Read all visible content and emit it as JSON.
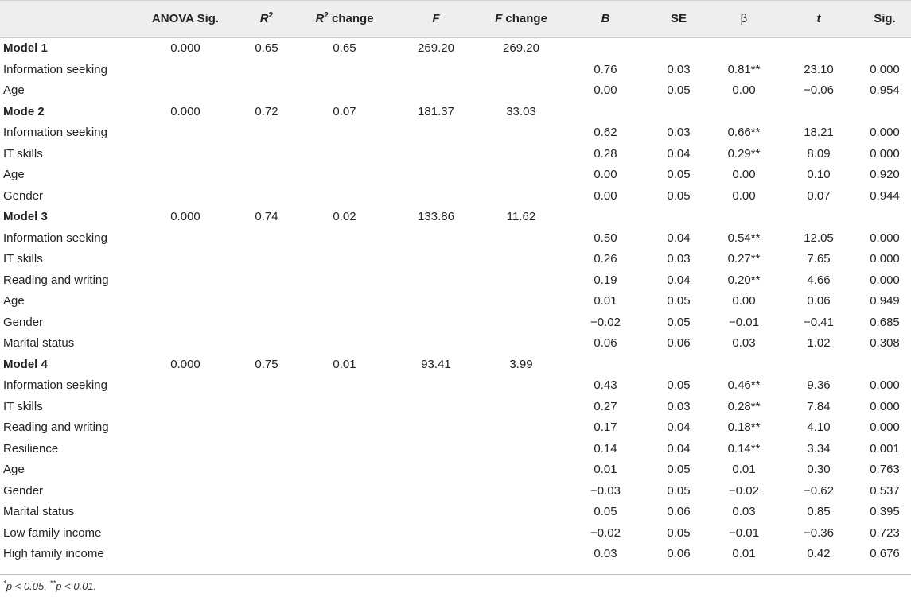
{
  "table": {
    "headers": {
      "anova_sig": "ANOVA Sig.",
      "r2": "R",
      "r2_sup": "2",
      "r2change": "R",
      "r2change_sup": "2",
      "r2change_suffix": " change",
      "f": "F",
      "fchange": "F",
      "fchange_suffix": " change",
      "b": "B",
      "se": "SE",
      "beta": "β",
      "t": "t",
      "sig": "Sig."
    },
    "rows": [
      {
        "label": "Model 1",
        "bold": true,
        "anova": "0.000",
        "r2": "0.65",
        "r2c": "0.65",
        "f": "269.20",
        "fc": "269.20",
        "b": "",
        "se": "",
        "beta": "",
        "t": "",
        "sig": ""
      },
      {
        "label": "Information seeking",
        "bold": false,
        "anova": "",
        "r2": "",
        "r2c": "",
        "f": "",
        "fc": "",
        "b": "0.76",
        "se": "0.03",
        "beta": "0.81**",
        "t": "23.10",
        "sig": "0.000"
      },
      {
        "label": "Age",
        "bold": false,
        "anova": "",
        "r2": "",
        "r2c": "",
        "f": "",
        "fc": "",
        "b": "0.00",
        "se": "0.05",
        "beta": "0.00",
        "t": "−0.06",
        "sig": "0.954"
      },
      {
        "label": "Mode 2",
        "bold": true,
        "anova": "0.000",
        "r2": "0.72",
        "r2c": "0.07",
        "f": "181.37",
        "fc": "33.03",
        "b": "",
        "se": "",
        "beta": "",
        "t": "",
        "sig": ""
      },
      {
        "label": "Information seeking",
        "bold": false,
        "anova": "",
        "r2": "",
        "r2c": "",
        "f": "",
        "fc": "",
        "b": "0.62",
        "se": "0.03",
        "beta": "0.66**",
        "t": "18.21",
        "sig": "0.000"
      },
      {
        "label": "IT skills",
        "bold": false,
        "anova": "",
        "r2": "",
        "r2c": "",
        "f": "",
        "fc": "",
        "b": "0.28",
        "se": "0.04",
        "beta": "0.29**",
        "t": "8.09",
        "sig": "0.000"
      },
      {
        "label": "Age",
        "bold": false,
        "anova": "",
        "r2": "",
        "r2c": "",
        "f": "",
        "fc": "",
        "b": "0.00",
        "se": "0.05",
        "beta": "0.00",
        "t": "0.10",
        "sig": "0.920"
      },
      {
        "label": "Gender",
        "bold": false,
        "anova": "",
        "r2": "",
        "r2c": "",
        "f": "",
        "fc": "",
        "b": "0.00",
        "se": "0.05",
        "beta": "0.00",
        "t": "0.07",
        "sig": "0.944"
      },
      {
        "label": "Model 3",
        "bold": true,
        "anova": "0.000",
        "r2": "0.74",
        "r2c": "0.02",
        "f": "133.86",
        "fc": "11.62",
        "b": "",
        "se": "",
        "beta": "",
        "t": "",
        "sig": ""
      },
      {
        "label": "Information seeking",
        "bold": false,
        "anova": "",
        "r2": "",
        "r2c": "",
        "f": "",
        "fc": "",
        "b": "0.50",
        "se": "0.04",
        "beta": "0.54**",
        "t": "12.05",
        "sig": "0.000"
      },
      {
        "label": "IT skills",
        "bold": false,
        "anova": "",
        "r2": "",
        "r2c": "",
        "f": "",
        "fc": "",
        "b": "0.26",
        "se": "0.03",
        "beta": "0.27**",
        "t": "7.65",
        "sig": "0.000"
      },
      {
        "label": "Reading and writing",
        "bold": false,
        "anova": "",
        "r2": "",
        "r2c": "",
        "f": "",
        "fc": "",
        "b": "0.19",
        "se": "0.04",
        "beta": "0.20**",
        "t": "4.66",
        "sig": "0.000"
      },
      {
        "label": "Age",
        "bold": false,
        "anova": "",
        "r2": "",
        "r2c": "",
        "f": "",
        "fc": "",
        "b": "0.01",
        "se": "0.05",
        "beta": "0.00",
        "t": "0.06",
        "sig": "0.949"
      },
      {
        "label": "Gender",
        "bold": false,
        "anova": "",
        "r2": "",
        "r2c": "",
        "f": "",
        "fc": "",
        "b": "−0.02",
        "se": "0.05",
        "beta": "−0.01",
        "t": "−0.41",
        "sig": "0.685"
      },
      {
        "label": "Marital status",
        "bold": false,
        "anova": "",
        "r2": "",
        "r2c": "",
        "f": "",
        "fc": "",
        "b": "0.06",
        "se": "0.06",
        "beta": "0.03",
        "t": "1.02",
        "sig": "0.308"
      },
      {
        "label": "Model 4",
        "bold": true,
        "anova": "0.000",
        "r2": "0.75",
        "r2c": "0.01",
        "f": "93.41",
        "fc": "3.99",
        "b": "",
        "se": "",
        "beta": "",
        "t": "",
        "sig": ""
      },
      {
        "label": "Information seeking",
        "bold": false,
        "anova": "",
        "r2": "",
        "r2c": "",
        "f": "",
        "fc": "",
        "b": "0.43",
        "se": "0.05",
        "beta": "0.46**",
        "t": "9.36",
        "sig": "0.000"
      },
      {
        "label": "IT skills",
        "bold": false,
        "anova": "",
        "r2": "",
        "r2c": "",
        "f": "",
        "fc": "",
        "b": "0.27",
        "se": "0.03",
        "beta": "0.28**",
        "t": "7.84",
        "sig": "0.000"
      },
      {
        "label": "Reading and writing",
        "bold": false,
        "anova": "",
        "r2": "",
        "r2c": "",
        "f": "",
        "fc": "",
        "b": "0.17",
        "se": "0.04",
        "beta": "0.18**",
        "t": "4.10",
        "sig": "0.000"
      },
      {
        "label": "Resilience",
        "bold": false,
        "anova": "",
        "r2": "",
        "r2c": "",
        "f": "",
        "fc": "",
        "b": "0.14",
        "se": "0.04",
        "beta": "0.14**",
        "t": "3.34",
        "sig": "0.001"
      },
      {
        "label": "Age",
        "bold": false,
        "anova": "",
        "r2": "",
        "r2c": "",
        "f": "",
        "fc": "",
        "b": "0.01",
        "se": "0.05",
        "beta": "0.01",
        "t": "0.30",
        "sig": "0.763"
      },
      {
        "label": "Gender",
        "bold": false,
        "anova": "",
        "r2": "",
        "r2c": "",
        "f": "",
        "fc": "",
        "b": "−0.03",
        "se": "0.05",
        "beta": "−0.02",
        "t": "−0.62",
        "sig": "0.537"
      },
      {
        "label": "Marital status",
        "bold": false,
        "anova": "",
        "r2": "",
        "r2c": "",
        "f": "",
        "fc": "",
        "b": "0.05",
        "se": "0.06",
        "beta": "0.03",
        "t": "0.85",
        "sig": "0.395"
      },
      {
        "label": "Low family income",
        "bold": false,
        "anova": "",
        "r2": "",
        "r2c": "",
        "f": "",
        "fc": "",
        "b": "−0.02",
        "se": "0.05",
        "beta": "−0.01",
        "t": "−0.36",
        "sig": "0.723"
      },
      {
        "label": "High family income",
        "bold": false,
        "anova": "",
        "r2": "",
        "r2c": "",
        "f": "",
        "fc": "",
        "b": "0.03",
        "se": "0.06",
        "beta": "0.01",
        "t": "0.42",
        "sig": "0.676"
      }
    ]
  },
  "footnote": {
    "p1_star": "*",
    "p1_text": "p < 0.05, ",
    "p2_star": "**",
    "p2_text": "p < 0.01."
  }
}
